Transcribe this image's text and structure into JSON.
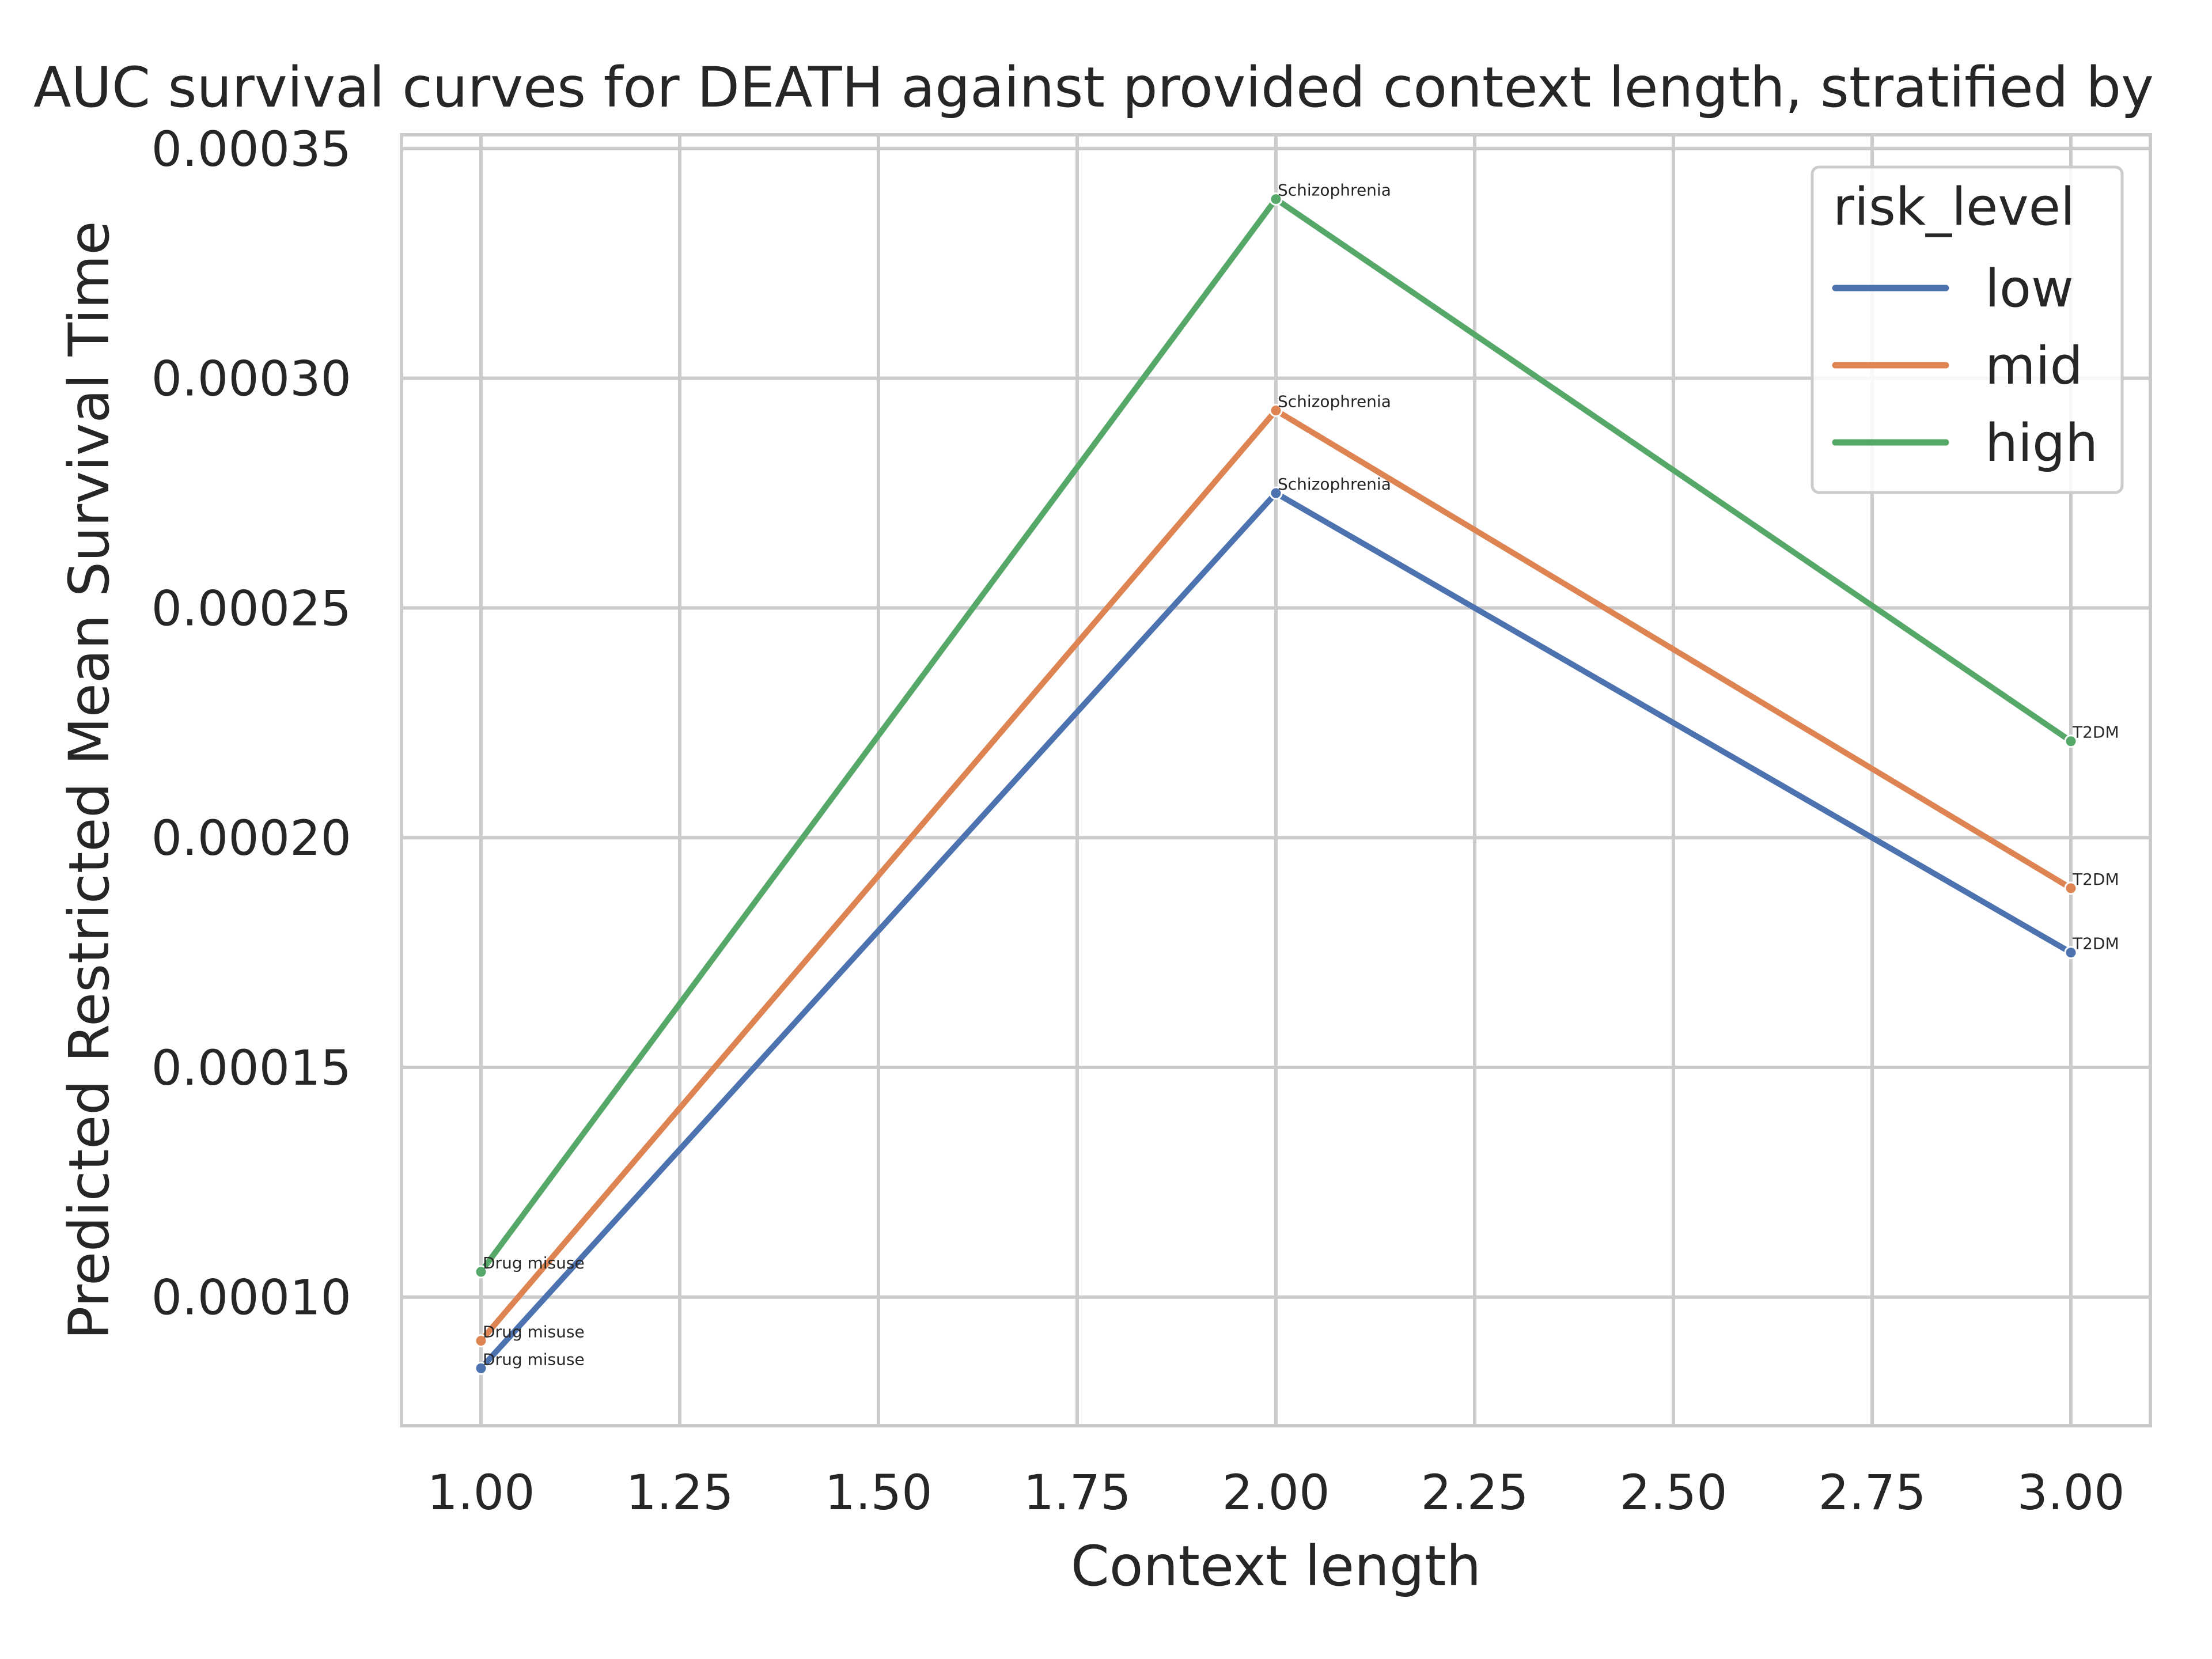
{
  "chart_data": {
    "type": "line",
    "title": "AUC survival curves for DEATH against provided context length, stratified by",
    "xlabel": "Context length",
    "ylabel": "Predicted Restricted Mean Survival Time",
    "xlim": [
      0.9,
      3.1
    ],
    "ylim": [
      7.2e-05,
      0.000353
    ],
    "xticks": [
      1.0,
      1.25,
      1.5,
      1.75,
      2.0,
      2.25,
      2.5,
      2.75,
      3.0
    ],
    "xtick_labels": [
      "1.00",
      "1.25",
      "1.50",
      "1.75",
      "2.00",
      "2.25",
      "2.50",
      "2.75",
      "3.00"
    ],
    "yticks": [
      0.0001,
      0.00015,
      0.0002,
      0.00025,
      0.0003,
      0.00035
    ],
    "ytick_labels": [
      "0.00010",
      "0.00015",
      "0.00020",
      "0.00025",
      "0.00030",
      "0.00035"
    ],
    "grid": true,
    "legend": {
      "title": "risk_level",
      "position": "top-right"
    },
    "x": [
      1,
      2,
      3
    ],
    "point_labels": [
      "Drug misuse",
      "Schizophrenia",
      "T2DM"
    ],
    "series": [
      {
        "name": "low",
        "color": "#4c72b0",
        "values": [
          8.45e-05,
          0.000275,
          0.000175
        ]
      },
      {
        "name": "mid",
        "color": "#dd8452",
        "values": [
          9.05e-05,
          0.000293,
          0.000189
        ]
      },
      {
        "name": "high",
        "color": "#55a868",
        "values": [
          0.0001055,
          0.000339,
          0.000221
        ]
      }
    ]
  }
}
